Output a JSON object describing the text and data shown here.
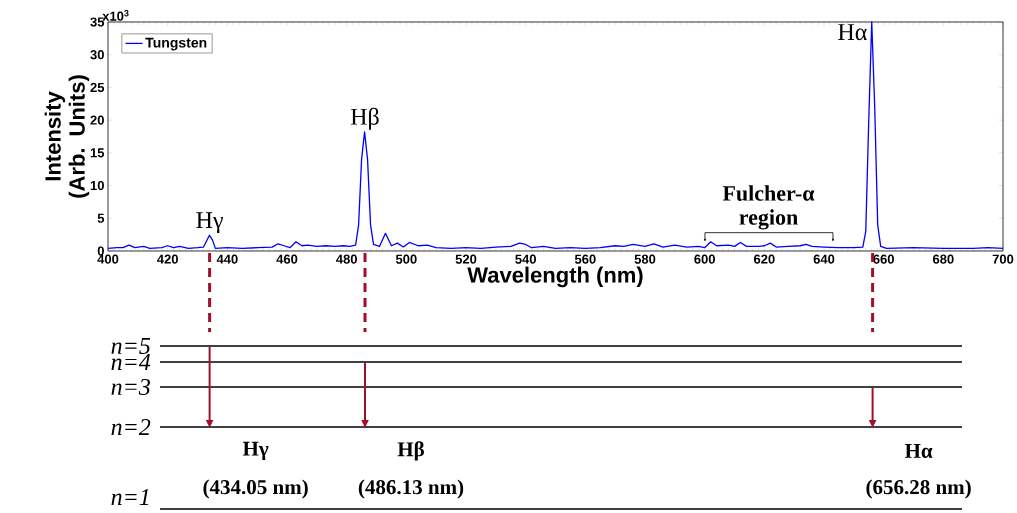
{
  "chart_data": [
    {
      "type": "line",
      "xlabel": "Wavelength (nm)",
      "ylabel": "Intensity (Arb. Units)",
      "xlim": [
        400,
        700
      ],
      "ylim": [
        0,
        35
      ],
      "xticks": [
        400,
        420,
        440,
        460,
        480,
        500,
        520,
        540,
        560,
        580,
        600,
        620,
        640,
        660,
        680,
        700
      ],
      "yticks": [
        0,
        5,
        10,
        15,
        20,
        25,
        30,
        35
      ],
      "legend": "top left",
      "series": [
        {
          "name": "Tungsten",
          "color": "#0000ff",
          "x": [
            400,
            403,
            405,
            407,
            409,
            412,
            414,
            418,
            420,
            422,
            424,
            427,
            430,
            432,
            433,
            434,
            435,
            436,
            440,
            445,
            450,
            455,
            457,
            459,
            461,
            463,
            465,
            467,
            470,
            473,
            476,
            479,
            481,
            483,
            484,
            485,
            486,
            487,
            488,
            489,
            491,
            493,
            495,
            497,
            499,
            501,
            504,
            507,
            510,
            515,
            520,
            525,
            530,
            535,
            538,
            540,
            542,
            546,
            550,
            555,
            560,
            565,
            570,
            573,
            576,
            580,
            583,
            586,
            590,
            594,
            598,
            600,
            602,
            604,
            608,
            610,
            612,
            614,
            618,
            620,
            622,
            624,
            628,
            632,
            634,
            636,
            640,
            645,
            650,
            653,
            654,
            655,
            656,
            657,
            658,
            659,
            661,
            670,
            680,
            690,
            695,
            700
          ],
          "values": [
            0.4,
            0.5,
            0.5,
            0.9,
            0.5,
            0.7,
            0.4,
            0.5,
            0.8,
            0.5,
            0.7,
            0.4,
            0.5,
            0.6,
            1.5,
            2.4,
            1.7,
            0.4,
            0.5,
            0.4,
            0.5,
            0.6,
            1.1,
            0.8,
            0.5,
            1.4,
            0.8,
            0.9,
            0.7,
            0.8,
            0.7,
            0.8,
            0.7,
            0.9,
            4,
            14,
            18.2,
            14,
            4,
            1,
            0.7,
            2.7,
            0.8,
            1.2,
            0.6,
            1.3,
            0.8,
            0.9,
            0.5,
            0.4,
            0.5,
            0.4,
            0.6,
            0.7,
            1.2,
            1,
            0.5,
            0.7,
            0.4,
            0.5,
            0.4,
            0.5,
            0.8,
            0.7,
            1,
            0.7,
            1.1,
            0.6,
            0.9,
            0.6,
            0.7,
            0.5,
            1.4,
            0.8,
            0.9,
            0.7,
            1.3,
            0.7,
            0.7,
            0.8,
            1.2,
            0.6,
            0.7,
            0.8,
            1,
            0.7,
            0.6,
            0.5,
            0.5,
            0.6,
            3,
            20,
            35,
            22,
            4,
            0.7,
            0.4,
            0.5,
            0.4,
            0.4,
            0.5,
            0.4
          ]
        }
      ],
      "annotations": [
        {
          "text": "Hγ",
          "x": 434.05,
          "y": 2.4
        },
        {
          "text": "Hβ",
          "x": 486.13,
          "y": 18.2
        },
        {
          "text": "Hα",
          "x": 656.28,
          "y": 35
        },
        "Fulcher-α region",
        "x10$^{3}$"
      ]
    },
    {
      "type": "other",
      "annotations": [
        "n=5",
        "n=4",
        "n=3",
        "n=2",
        "n=1",
        "Hγ",
        "(434.05 nm)",
        "Hβ",
        "(486.13 nm)",
        "Hα",
        "(656.28 nm)"
      ]
    }
  ]
}
